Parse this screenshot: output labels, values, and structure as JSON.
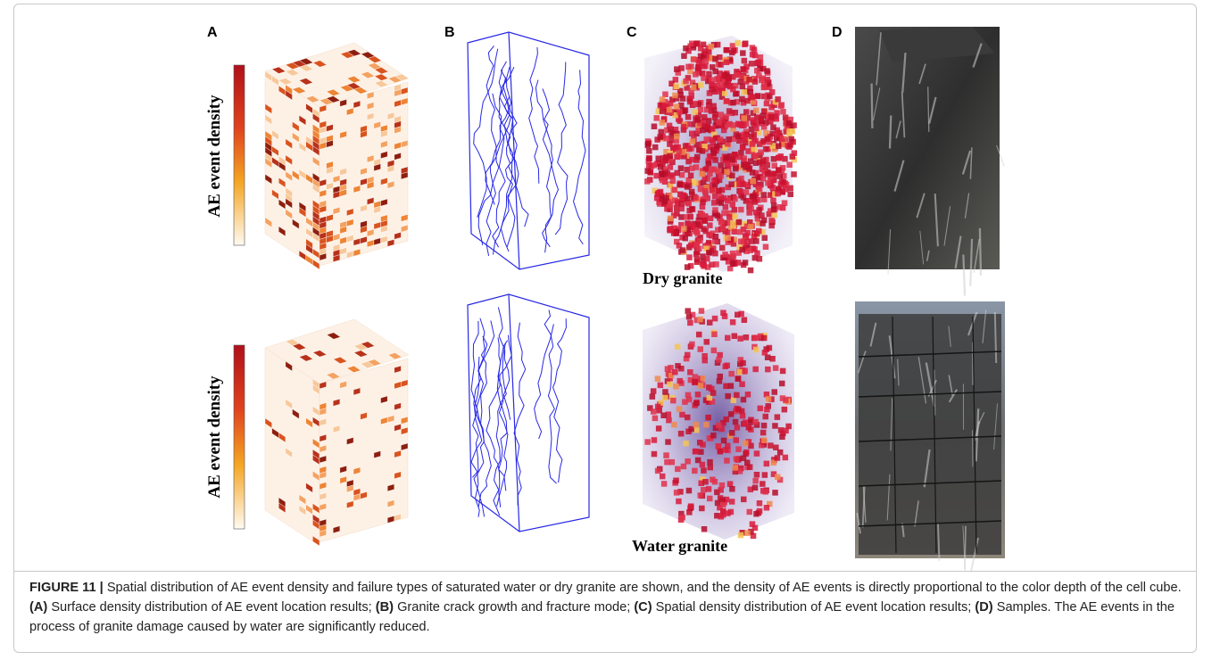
{
  "panels": {
    "labels": [
      "A",
      "B",
      "C",
      "D"
    ]
  },
  "colorbar_labels": [
    "AE event density",
    "AE event density"
  ],
  "row_labels": [
    "Dry granite",
    "Water granite"
  ],
  "caption": {
    "label": "FIGURE 11 |",
    "segments": [
      {
        "text": " Spatial distribution of AE event density and failure types of saturated water or dry granite are shown, and the density of AE events is directly proportional to the color depth of the cell cube. ",
        "bold": false
      },
      {
        "text": "(A)",
        "bold": true
      },
      {
        "text": " Surface density distribution of AE event location results; ",
        "bold": false
      },
      {
        "text": "(B)",
        "bold": true
      },
      {
        "text": " Granite crack growth and fracture mode; ",
        "bold": false
      },
      {
        "text": "(C)",
        "bold": true
      },
      {
        "text": " Spatial density distribution of AE event location results; ",
        "bold": false
      },
      {
        "text": "(D)",
        "bold": true
      },
      {
        "text": " Samples. The AE events in the process of granite damage caused by water are significantly reduced.",
        "bold": false
      }
    ]
  }
}
